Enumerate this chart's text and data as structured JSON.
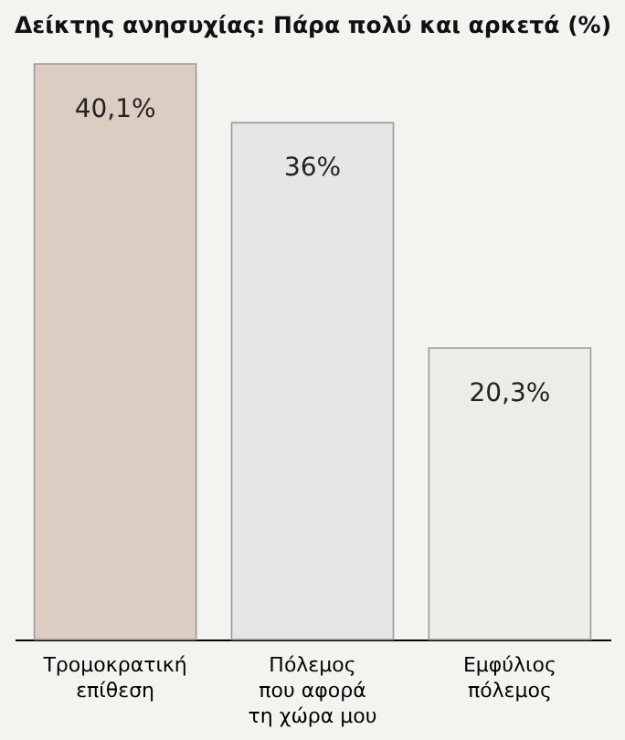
{
  "chart_data": {
    "type": "bar",
    "title": "Δείκτης ανησυχίας: Πάρα πολύ και αρκετά (%)",
    "categories": [
      "Τρομοκρατική\nεπίθεση",
      "Πόλεμος\nπου αφορά\nτη χώρα μου",
      "Εμφύλιος\nπόλεμος"
    ],
    "values": [
      40.1,
      36,
      20.3
    ],
    "colors": [
      "#dccdc3",
      "#e6e6e6",
      "#ededE8"
    ],
    "value_labels": [
      "40,1%",
      "36%",
      "20,3%"
    ],
    "data_labels": true
  }
}
